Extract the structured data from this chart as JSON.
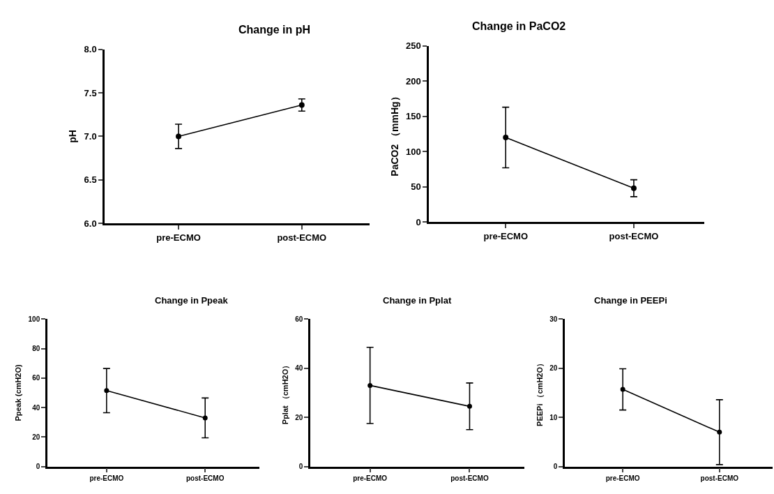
{
  "chart_data": [
    {
      "type": "line",
      "title": "Change in pH",
      "ylabel": "pH",
      "categories": [
        "pre-ECMO",
        "post-ECMO"
      ],
      "series": [
        {
          "color": "#000000",
          "values": [
            7.0,
            7.36
          ],
          "errors": [
            0.14,
            0.07
          ]
        }
      ],
      "ylim": [
        6.0,
        8.0
      ],
      "yticks": [
        {
          "value": 6.0,
          "label": "6.0"
        },
        {
          "value": 6.5,
          "label": "6.5"
        },
        {
          "value": 7.0,
          "label": "7.0"
        },
        {
          "value": 7.5,
          "label": "7.5"
        },
        {
          "value": 8.0,
          "label": "8.0"
        }
      ],
      "marker": "circle"
    },
    {
      "type": "line",
      "title": "Change in PaCO2",
      "ylabel": "PaCO2 （mmHg）",
      "categories": [
        "pre-ECMO",
        "post-ECMO"
      ],
      "series": [
        {
          "color": "#000000",
          "values": [
            120,
            48
          ],
          "errors": [
            43,
            12
          ]
        }
      ],
      "ylim": [
        0,
        250
      ],
      "yticks": [
        0,
        50,
        100,
        150,
        200,
        250
      ],
      "marker": "circle"
    },
    {
      "type": "line",
      "title": "Change in Ppeak",
      "ylabel": "Ppeak (cmH2O)",
      "categories": [
        "pre-ECMO",
        "post-ECMO"
      ],
      "series": [
        {
          "color": "#000000",
          "values": [
            51.5,
            33
          ],
          "errors": [
            15,
            13.5
          ]
        }
      ],
      "ylim": [
        0,
        100
      ],
      "yticks": [
        0,
        20,
        40,
        60,
        80,
        100
      ],
      "marker": "circle"
    },
    {
      "type": "line",
      "title": "Change in Pplat",
      "ylabel": "Pplat （cmH2O）",
      "categories": [
        "pre-ECMO",
        "post-ECMO"
      ],
      "series": [
        {
          "color": "#000000",
          "values": [
            33,
            24.5
          ],
          "errors": [
            15.5,
            9.5
          ]
        }
      ],
      "ylim": [
        0,
        60
      ],
      "yticks": [
        0,
        20,
        40,
        60
      ],
      "marker": "circle"
    },
    {
      "type": "line",
      "title": "Change in PEEPi",
      "ylabel": "PEEPi （cmH2O）",
      "categories": [
        "pre-ECMO",
        "post-ECMO"
      ],
      "series": [
        {
          "color": "#000000",
          "values": [
            15.7,
            7
          ],
          "errors": [
            4.2,
            6.6
          ]
        }
      ],
      "ylim": [
        0,
        30
      ],
      "yticks": [
        0,
        10,
        20,
        30
      ],
      "marker": "circle"
    }
  ]
}
